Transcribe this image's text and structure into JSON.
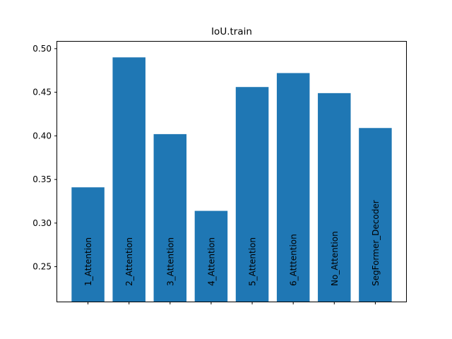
{
  "chart_data": {
    "type": "bar",
    "title": "IoU.train",
    "xlabel": "",
    "ylabel": "",
    "categories": [
      "1_Attention",
      "2_Attention",
      "3_Attention",
      "4_Attention",
      "5_Attention",
      "6_Atttention",
      "No_Attention",
      "SegFormer_Decoder"
    ],
    "values": [
      0.341,
      0.49,
      0.402,
      0.314,
      0.456,
      0.472,
      0.449,
      0.409
    ],
    "ylim": [
      0.21,
      0.508
    ],
    "yticks": [
      "0.25",
      "0.30",
      "0.35",
      "0.40",
      "0.45",
      "0.50"
    ],
    "bar_color": "#1f77b4",
    "grid": false,
    "x_tick_labels_shown": false
  }
}
